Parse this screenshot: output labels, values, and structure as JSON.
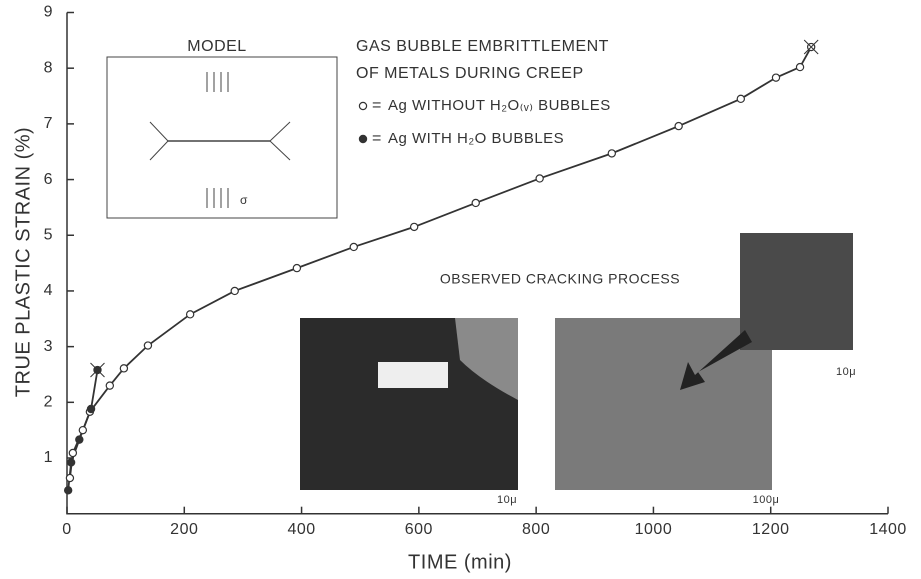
{
  "chart_data": {
    "type": "line",
    "title": [
      "GAS BUBBLE EMBRITTLEMENT",
      "OF METALS DURING CREEP"
    ],
    "x_label": "TIME (min)",
    "y_label": "TRUE PLASTIC STRAIN (%)",
    "xlim": [
      0,
      1400
    ],
    "xticks": [
      0,
      200,
      400,
      600,
      800,
      1000,
      1200,
      1400
    ],
    "ylim": [
      0,
      9
    ],
    "yticks": [
      1,
      2,
      3,
      4,
      5,
      6,
      7,
      8,
      9
    ],
    "series": [
      {
        "name": "Ag WITHOUT H₂O₍ᵥ₎ BUBBLES",
        "color": "#333333",
        "marker": "open",
        "x": [
          5,
          10,
          27,
          39,
          73,
          97,
          138,
          210,
          286,
          392,
          489,
          592,
          697,
          806,
          929,
          1043,
          1149,
          1209,
          1250,
          1269
        ],
        "values": [
          0.64,
          1.09,
          1.5,
          1.83,
          2.3,
          2.61,
          3.02,
          3.58,
          4.0,
          4.41,
          4.79,
          5.15,
          5.58,
          6.02,
          6.47,
          6.96,
          7.45,
          7.83,
          8.02,
          8.38
        ]
      },
      {
        "name": "Ag WITH H₂O BUBBLES",
        "color": "#333333",
        "marker": "filled",
        "x": [
          2,
          7,
          21,
          41,
          52
        ],
        "values": [
          0.42,
          0.92,
          1.33,
          1.88,
          2.58
        ]
      }
    ],
    "model_label": "MODEL",
    "stress_label": "σ",
    "inset_title": "OBSERVED CRACKING PROCESS",
    "scale_bars": [
      "10μ",
      "100μ",
      "10μ"
    ]
  }
}
